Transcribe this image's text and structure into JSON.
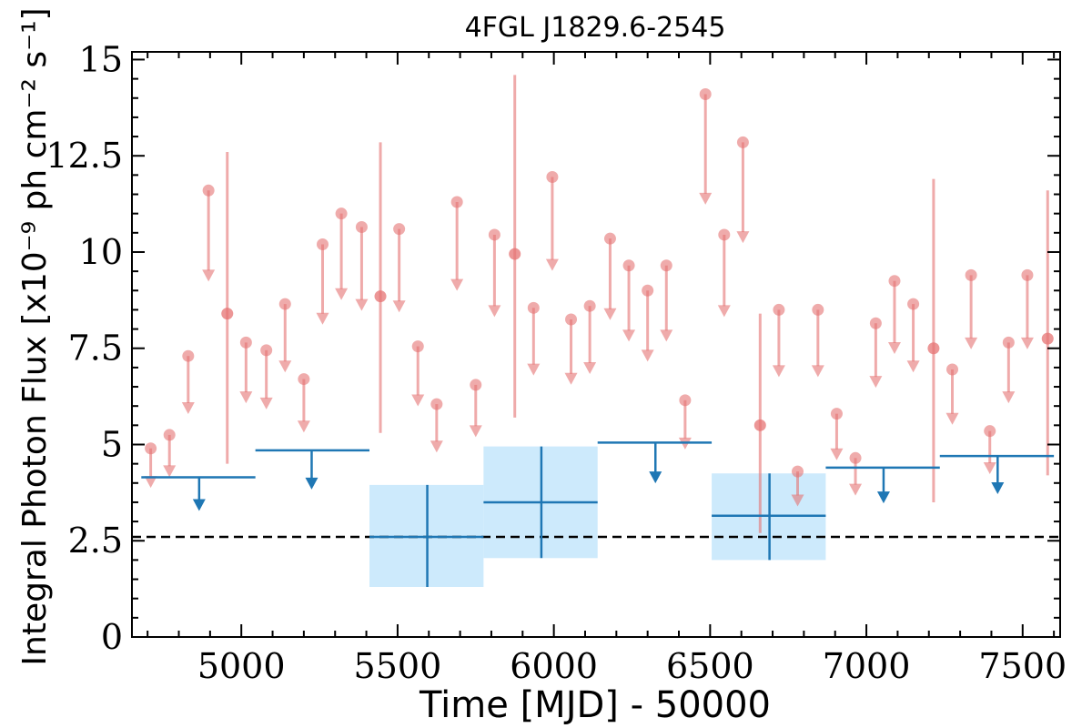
{
  "chart_data": {
    "type": "scatter",
    "title": "4FGL J1829.6-2545",
    "xlabel": "Time [MJD] - 50000",
    "ylabel": "Integral Photon Flux [x10⁻⁹ ph cm⁻² s⁻¹]",
    "xlim": [
      4650,
      7620
    ],
    "ylim": [
      0,
      15.2
    ],
    "x_ticks": [
      5000,
      5500,
      6000,
      6500,
      7000,
      7500
    ],
    "x_tick_labels": [
      "5000",
      "5500",
      "6000",
      "6500",
      "7000",
      "7500"
    ],
    "y_ticks": [
      0,
      2.5,
      5,
      7.5,
      10,
      12.5,
      15
    ],
    "y_tick_labels": [
      "0",
      "2.5",
      "5",
      "7.5",
      "10",
      "12.5",
      "15"
    ],
    "reference_line": {
      "y": 2.6,
      "style": "dashed"
    },
    "colors": {
      "fine": "#e57373",
      "coarse": "#1f77b4",
      "band": "#cdeafc",
      "refline": "#000000"
    },
    "fine_bins": {
      "detections": [
        {
          "x": 4955,
          "y": 8.4,
          "lo": 4.5,
          "hi": 12.6
        },
        {
          "x": 5445,
          "y": 8.85,
          "lo": 5.3,
          "hi": 12.85
        },
        {
          "x": 5875,
          "y": 9.95,
          "lo": 5.7,
          "hi": 14.6
        },
        {
          "x": 6660,
          "y": 5.5,
          "lo": 2.7,
          "hi": 8.4
        },
        {
          "x": 7215,
          "y": 7.5,
          "lo": 3.5,
          "hi": 11.9
        },
        {
          "x": 7580,
          "y": 7.75,
          "lo": 4.2,
          "hi": 11.6
        }
      ],
      "upper_limits": [
        {
          "x": 4710,
          "y": 4.9
        },
        {
          "x": 4770,
          "y": 5.25
        },
        {
          "x": 4830,
          "y": 7.3
        },
        {
          "x": 4895,
          "y": 11.6
        },
        {
          "x": 5015,
          "y": 7.65
        },
        {
          "x": 5080,
          "y": 7.45
        },
        {
          "x": 5140,
          "y": 8.65
        },
        {
          "x": 5200,
          "y": 6.7
        },
        {
          "x": 5260,
          "y": 10.2
        },
        {
          "x": 5320,
          "y": 11.0
        },
        {
          "x": 5385,
          "y": 10.65
        },
        {
          "x": 5505,
          "y": 10.6
        },
        {
          "x": 5565,
          "y": 7.55
        },
        {
          "x": 5625,
          "y": 6.05
        },
        {
          "x": 5690,
          "y": 11.3
        },
        {
          "x": 5750,
          "y": 6.55
        },
        {
          "x": 5810,
          "y": 10.45
        },
        {
          "x": 5935,
          "y": 8.55
        },
        {
          "x": 5995,
          "y": 11.95
        },
        {
          "x": 6055,
          "y": 8.25
        },
        {
          "x": 6115,
          "y": 8.6
        },
        {
          "x": 6180,
          "y": 10.35
        },
        {
          "x": 6240,
          "y": 9.65
        },
        {
          "x": 6300,
          "y": 9.0
        },
        {
          "x": 6360,
          "y": 9.65
        },
        {
          "x": 6420,
          "y": 6.15
        },
        {
          "x": 6485,
          "y": 14.1
        },
        {
          "x": 6545,
          "y": 10.45
        },
        {
          "x": 6605,
          "y": 12.85
        },
        {
          "x": 6720,
          "y": 8.5
        },
        {
          "x": 6780,
          "y": 4.3
        },
        {
          "x": 6845,
          "y": 8.5
        },
        {
          "x": 6905,
          "y": 5.8
        },
        {
          "x": 6965,
          "y": 4.65
        },
        {
          "x": 7030,
          "y": 8.15
        },
        {
          "x": 7090,
          "y": 9.25
        },
        {
          "x": 7150,
          "y": 8.65
        },
        {
          "x": 7275,
          "y": 6.95
        },
        {
          "x": 7335,
          "y": 9.4
        },
        {
          "x": 7395,
          "y": 5.35
        },
        {
          "x": 7455,
          "y": 7.65
        },
        {
          "x": 7515,
          "y": 9.4
        }
      ]
    },
    "coarse_bins": {
      "detections": [
        {
          "x": 5595,
          "x0": 5410,
          "x1": 5775,
          "y": 2.6,
          "lo": 1.3,
          "hi": 3.95
        },
        {
          "x": 5960,
          "x0": 5775,
          "x1": 6140,
          "y": 3.5,
          "lo": 2.05,
          "hi": 4.95
        },
        {
          "x": 6690,
          "x0": 6505,
          "x1": 6870,
          "y": 3.15,
          "lo": 2.0,
          "hi": 4.25
        }
      ],
      "upper_limits": [
        {
          "x": 4865,
          "x0": 4680,
          "x1": 5045,
          "y": 4.15
        },
        {
          "x": 5225,
          "x0": 5045,
          "x1": 5410,
          "y": 4.85
        },
        {
          "x": 6325,
          "x0": 6140,
          "x1": 6505,
          "y": 5.05
        },
        {
          "x": 7055,
          "x0": 6870,
          "x1": 7235,
          "y": 4.4
        },
        {
          "x": 7420,
          "x0": 7235,
          "x1": 7600,
          "y": 4.7
        }
      ]
    }
  }
}
